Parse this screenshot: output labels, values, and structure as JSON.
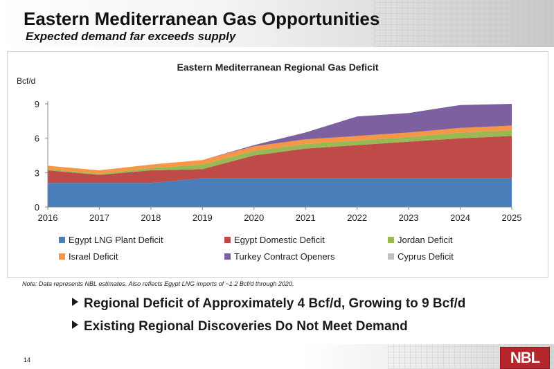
{
  "header": {
    "title": "Eastern Mediterranean Gas Opportunities",
    "subtitle": "Expected demand far exceeds supply"
  },
  "colors": {
    "egypt_lng": "#4a7ebb",
    "egypt_domestic": "#be4b48",
    "jordan": "#98b954",
    "israel": "#f79646",
    "turkey": "#7d60a0",
    "cyprus": "#bfbfbf"
  },
  "chart_data": {
    "type": "area",
    "stacked": true,
    "title": "Eastern Mediterranean Regional Gas Deficit",
    "ylabel": "Bcf/d",
    "xlabel": "",
    "ylim": [
      0,
      9
    ],
    "yticks": [
      "0",
      "3",
      "6",
      "9"
    ],
    "categories": [
      "2016",
      "2017",
      "2018",
      "2019",
      "2020",
      "2021",
      "2022",
      "2023",
      "2024",
      "2025"
    ],
    "series": [
      {
        "name": "Egypt LNG Plant Deficit",
        "color": "#4a7ebb",
        "values": [
          2.1,
          2.1,
          2.1,
          2.5,
          2.5,
          2.5,
          2.5,
          2.5,
          2.5,
          2.5
        ]
      },
      {
        "name": "Egypt Domestic Deficit",
        "color": "#be4b48",
        "values": [
          1.1,
          0.7,
          1.1,
          0.8,
          2.0,
          2.6,
          2.9,
          3.2,
          3.5,
          3.7
        ]
      },
      {
        "name": "Jordan Deficit",
        "color": "#98b954",
        "values": [
          0.1,
          0.1,
          0.2,
          0.4,
          0.4,
          0.4,
          0.4,
          0.4,
          0.5,
          0.5
        ]
      },
      {
        "name": "Israel Deficit",
        "color": "#f79646",
        "values": [
          0.3,
          0.3,
          0.3,
          0.4,
          0.4,
          0.4,
          0.4,
          0.4,
          0.4,
          0.4
        ]
      },
      {
        "name": "Turkey Contract Openers",
        "color": "#7d60a0",
        "values": [
          0,
          0,
          0,
          0,
          0.1,
          0.6,
          1.7,
          1.7,
          2.0,
          1.9
        ]
      },
      {
        "name": "Cyprus Deficit",
        "color": "#bfbfbf",
        "values": [
          0,
          0,
          0,
          0,
          0,
          0,
          0,
          0,
          0,
          0
        ]
      }
    ],
    "legend_position": "bottom",
    "grid": false
  },
  "note": "Note: Data represents NBL estimates.  Also reflects Egypt LNG imports of ~1.2 Bcf/d through 2020.",
  "bullets": [
    "Regional Deficit of Approximately 4 Bcf/d, Growing to 9 Bcf/d",
    "Existing Regional Discoveries Do Not Meet Demand"
  ],
  "page_number": "14",
  "logo_text": "NBL"
}
